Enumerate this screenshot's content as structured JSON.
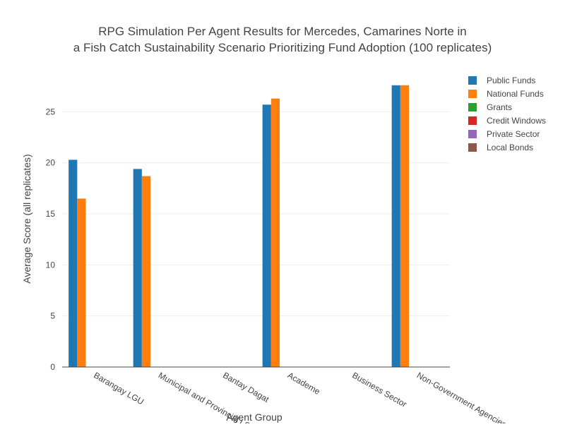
{
  "chart_data": {
    "type": "bar",
    "title_line1": "RPG Simulation Per Agent Results for Mercedes, Camarines Norte in",
    "title_line2": "a Fish Catch Sustainability Scenario Prioritizing Fund Adoption (100 replicates)",
    "xlabel": "Agent Group",
    "ylabel": "Average Score (all replicates)",
    "ylim": [
      0,
      28.9
    ],
    "yticks": [
      0,
      5,
      10,
      15,
      20,
      25
    ],
    "grid": true,
    "legend_position": "top-right",
    "categories": [
      "Barangay LGU",
      "Municipal and Provincial LGU",
      "Bantay Dagat",
      "Academe",
      "Business Sector",
      "Non-Government Agencies"
    ],
    "series": [
      {
        "name": "Public Funds",
        "color": "#1f77b4",
        "values": [
          20.3,
          19.4,
          0,
          25.7,
          0,
          27.6
        ]
      },
      {
        "name": "National Funds",
        "color": "#ff7f0e",
        "values": [
          16.5,
          18.7,
          0,
          26.3,
          0,
          27.6
        ]
      },
      {
        "name": "Grants",
        "color": "#2ca02c",
        "values": [
          0,
          0,
          0,
          0,
          0,
          0
        ]
      },
      {
        "name": "Credit Windows",
        "color": "#d62728",
        "values": [
          0,
          0,
          0,
          0,
          0,
          0
        ]
      },
      {
        "name": "Private Sector",
        "color": "#9467bd",
        "values": [
          0,
          0,
          0,
          0,
          0,
          0
        ]
      },
      {
        "name": "Local Bonds",
        "color": "#8c564b",
        "values": [
          0,
          0,
          0,
          0,
          0,
          0
        ]
      }
    ]
  }
}
